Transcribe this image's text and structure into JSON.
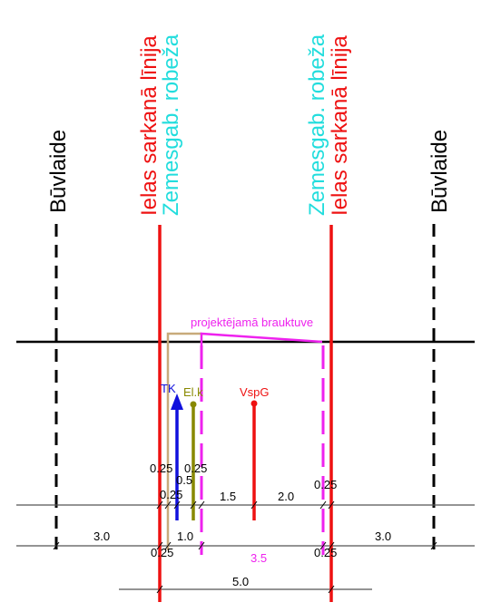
{
  "labels": {
    "buvlaide_left": "Būvlaide",
    "buvlaide_right": "Būvlaide",
    "sarkana_left": "Ielas sarkanā līnija",
    "sarkana_right": "Ielas sarkanā līnija",
    "robeza_left": "Zemesgab. robeža",
    "robeza_right": "Zemesgab. robeža",
    "brauktuve": "projektējamā brauktuve",
    "tk": "TK",
    "elk": "El.k",
    "vspg": "VspG"
  },
  "dimensions": {
    "d025_a": "0.25",
    "d025_b": "0.25",
    "d025_c": "0.25",
    "d05": "0.5",
    "d15": "1.5",
    "d20": "2.0",
    "d025_d": "0.25",
    "d30_left": "3.0",
    "d10": "1.0",
    "d025_e": "0.25",
    "d35": "3.5",
    "d025_f": "0.25",
    "d30_right": "3.0",
    "d50": "5.0"
  },
  "colors": {
    "red": "#ee1111",
    "cyan": "#22dddd",
    "magenta": "#ee22ee",
    "blue": "#1111dd",
    "olive": "#888800",
    "tan": "#c8aa7a",
    "black": "#000000"
  }
}
